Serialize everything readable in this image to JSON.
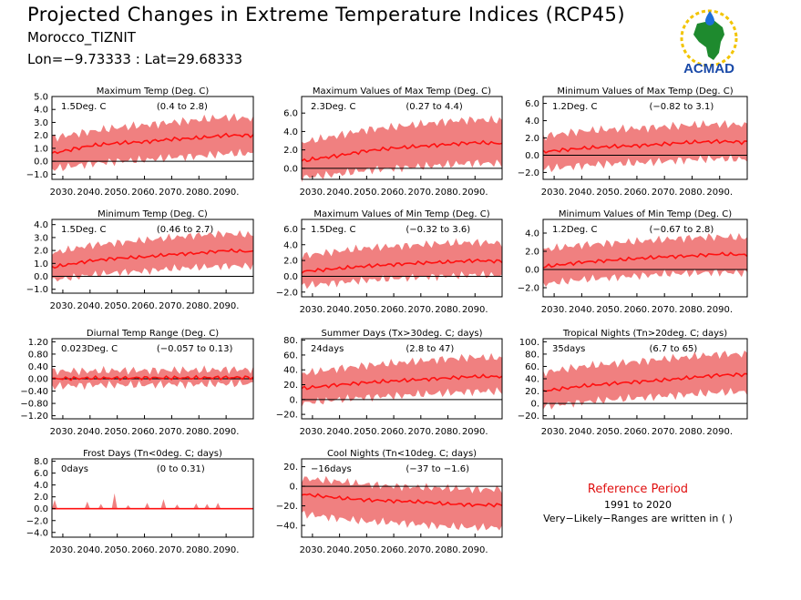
{
  "header": {
    "title": "Projected Changes in Extreme Temperature Indices (RCP45)",
    "location": "Morocco_TIZNIT",
    "coords": "Lon=−9.73333 : Lat=29.68333"
  },
  "logo": {
    "text": "ACMAD"
  },
  "reference": {
    "title": "Reference Period",
    "years": "1991 to 2020",
    "note": "Very−Likely−Ranges are written in ( )"
  },
  "colors": {
    "band": "#f08080",
    "line": "#ff1010",
    "zero": "#000000"
  },
  "chart_data": [
    {
      "type": "line",
      "title": "Maximum Temp (Deg. C)",
      "change": "1.5Deg. C",
      "range": "(0.4 to 2.8)",
      "x_ticks": [
        "2030.",
        "2040.",
        "2050.",
        "2060.",
        "2070.",
        "2080.",
        "2090."
      ],
      "y_ticks": [
        "−1.0",
        "0.0",
        "1.0",
        "2.0",
        "3.0",
        "4.0",
        "5.0"
      ],
      "ylim": [
        -1.4,
        5.0
      ],
      "series": [
        {
          "name": "median",
          "x": [
            2026,
            2040,
            2050,
            2060,
            2070,
            2080,
            2090,
            2100
          ],
          "y": [
            0.6,
            1.2,
            1.4,
            1.5,
            1.7,
            1.8,
            2.0,
            2.0
          ]
        }
      ],
      "band": {
        "lower": [
          -0.6,
          -0.2,
          0.0,
          0.1,
          0.3,
          0.4,
          0.6,
          0.6
        ],
        "upper": [
          1.8,
          2.3,
          2.6,
          2.8,
          3.0,
          3.2,
          3.4,
          3.3
        ]
      }
    },
    {
      "type": "line",
      "title": "Maximum Values of Max Temp (Deg. C)",
      "change": "2.3Deg. C",
      "range": "(0.27 to 4.4)",
      "x_ticks": [
        "2030.",
        "2040.",
        "2050.",
        "2060.",
        "2070.",
        "2080.",
        "2090."
      ],
      "y_ticks": [
        "0.0",
        "2.0",
        "4.0",
        "6.0"
      ],
      "ylim": [
        -1.2,
        7.8
      ],
      "series": [
        {
          "name": "median",
          "x": [
            2026,
            2040,
            2050,
            2060,
            2070,
            2080,
            2090,
            2100
          ],
          "y": [
            0.8,
            1.4,
            1.9,
            2.2,
            2.4,
            2.6,
            2.8,
            2.7
          ]
        }
      ],
      "band": {
        "lower": [
          -1.0,
          -0.6,
          -0.2,
          0.0,
          0.2,
          0.4,
          0.6,
          0.5
        ],
        "upper": [
          2.8,
          3.6,
          4.2,
          4.5,
          4.8,
          5.1,
          5.3,
          5.2
        ]
      }
    },
    {
      "type": "line",
      "title": "Minimum Values of Max Temp (Deg. C)",
      "change": "1.2Deg. C",
      "range": "(−0.82 to 3.1)",
      "x_ticks": [
        "2030.",
        "2040.",
        "2050.",
        "2060.",
        "2070.",
        "2080.",
        "2090."
      ],
      "y_ticks": [
        "−2.0",
        "0.0",
        "2.0",
        "4.0",
        "6.0"
      ],
      "ylim": [
        -2.8,
        6.8
      ],
      "series": [
        {
          "name": "median",
          "x": [
            2026,
            2040,
            2050,
            2060,
            2070,
            2080,
            2090,
            2100
          ],
          "y": [
            0.4,
            0.8,
            1.0,
            1.1,
            1.3,
            1.5,
            1.6,
            1.5
          ]
        }
      ],
      "band": {
        "lower": [
          -1.6,
          -1.2,
          -1.0,
          -0.9,
          -0.7,
          -0.5,
          -0.4,
          -0.5
        ],
        "upper": [
          2.2,
          2.8,
          3.0,
          3.1,
          3.3,
          3.5,
          3.6,
          3.5
        ]
      }
    },
    {
      "type": "line",
      "title": "Minimum Temp (Deg. C)",
      "change": "1.5Deg. C",
      "range": "(0.46 to 2.7)",
      "x_ticks": [
        "2030.",
        "2040.",
        "2050.",
        "2060.",
        "2070.",
        "2080.",
        "2090."
      ],
      "y_ticks": [
        "−1.0",
        "0.0",
        "1.0",
        "2.0",
        "3.0",
        "4.0"
      ],
      "ylim": [
        -1.3,
        4.4
      ],
      "series": [
        {
          "name": "median",
          "x": [
            2026,
            2040,
            2050,
            2060,
            2070,
            2080,
            2090,
            2100
          ],
          "y": [
            0.7,
            1.2,
            1.4,
            1.5,
            1.7,
            1.8,
            2.0,
            1.9
          ]
        }
      ],
      "band": {
        "lower": [
          -0.3,
          0.1,
          0.3,
          0.4,
          0.6,
          0.7,
          0.8,
          0.8
        ],
        "upper": [
          1.8,
          2.4,
          2.6,
          2.8,
          3.0,
          3.2,
          3.3,
          3.2
        ]
      }
    },
    {
      "type": "line",
      "title": "Maximum Values of Min Temp (Deg. C)",
      "change": "1.5Deg. C",
      "range": "(−0.32 to 3.6)",
      "x_ticks": [
        "2030.",
        "2040.",
        "2050.",
        "2060.",
        "2070.",
        "2080.",
        "2090."
      ],
      "y_ticks": [
        "−2.0",
        "0.0",
        "2.0",
        "4.0",
        "6.0"
      ],
      "ylim": [
        -2.6,
        7.2
      ],
      "series": [
        {
          "name": "median",
          "x": [
            2026,
            2040,
            2050,
            2060,
            2070,
            2080,
            2090,
            2100
          ],
          "y": [
            0.6,
            1.0,
            1.3,
            1.5,
            1.7,
            1.8,
            2.0,
            1.9
          ]
        }
      ],
      "band": {
        "lower": [
          -1.2,
          -0.8,
          -0.5,
          -0.3,
          -0.1,
          0.0,
          0.2,
          0.1
        ],
        "upper": [
          2.6,
          3.2,
          3.6,
          3.8,
          4.0,
          4.2,
          4.3,
          4.2
        ]
      }
    },
    {
      "type": "line",
      "title": "Minimum Values of Min Temp (Deg. C)",
      "change": "1.2Deg. C",
      "range": "(−0.67 to 2.8)",
      "x_ticks": [
        "2030.",
        "2040.",
        "2050.",
        "2060.",
        "2070.",
        "2080.",
        "2090."
      ],
      "y_ticks": [
        "−2.0",
        "0.0",
        "2.0",
        "4.0"
      ],
      "ylim": [
        -3.0,
        5.5
      ],
      "series": [
        {
          "name": "median",
          "x": [
            2026,
            2040,
            2050,
            2060,
            2070,
            2080,
            2090,
            2100
          ],
          "y": [
            0.3,
            0.8,
            1.0,
            1.2,
            1.4,
            1.5,
            1.7,
            1.6
          ]
        }
      ],
      "band": {
        "lower": [
          -1.6,
          -1.1,
          -0.9,
          -0.7,
          -0.5,
          -0.4,
          -0.3,
          -0.4
        ],
        "upper": [
          2.2,
          2.7,
          2.9,
          3.1,
          3.3,
          3.5,
          3.6,
          3.5
        ]
      }
    },
    {
      "type": "line",
      "title": "Diurnal Temp Range (Deg. C)",
      "change": "0.023Deg. C",
      "range": "(−0.057 to 0.13)",
      "x_ticks": [
        "2030.",
        "2040.",
        "2050.",
        "2060.",
        "2070.",
        "2080.",
        "2090."
      ],
      "y_ticks": [
        "−1.20",
        "−0.80",
        "−0.40",
        "0.00",
        "0.40",
        "0.80",
        "1.20"
      ],
      "ylim": [
        -1.3,
        1.3
      ],
      "series": [
        {
          "name": "median",
          "x": [
            2026,
            2040,
            2050,
            2060,
            2070,
            2080,
            2090,
            2100
          ],
          "y": [
            0.0,
            0.02,
            0.02,
            0.03,
            0.03,
            0.03,
            0.04,
            0.04
          ]
        }
      ],
      "band": {
        "lower": [
          -0.25,
          -0.2,
          -0.2,
          -0.2,
          -0.18,
          -0.18,
          -0.16,
          -0.16
        ],
        "upper": [
          0.25,
          0.25,
          0.27,
          0.27,
          0.28,
          0.28,
          0.3,
          0.3
        ]
      }
    },
    {
      "type": "line",
      "title": "Summer Days (Tx>30deg. C; days)",
      "change": "24days",
      "range": "(2.8 to 47)",
      "x_ticks": [
        "2030.",
        "2040.",
        "2050.",
        "2060.",
        "2070.",
        "2080.",
        "2090."
      ],
      "y_ticks": [
        "−20.",
        "0.",
        "20.",
        "40.",
        "60.",
        "80."
      ],
      "ylim": [
        -26,
        82
      ],
      "series": [
        {
          "name": "median",
          "x": [
            2026,
            2040,
            2050,
            2060,
            2070,
            2080,
            2090,
            2100
          ],
          "y": [
            15,
            20,
            23,
            25,
            27,
            29,
            31,
            31
          ]
        }
      ],
      "band": {
        "lower": [
          -5,
          0,
          3,
          5,
          7,
          9,
          11,
          11
        ],
        "upper": [
          35,
          42,
          46,
          49,
          52,
          55,
          57,
          56
        ]
      }
    },
    {
      "type": "line",
      "title": "Tropical Nights (Tn>20deg. C; days)",
      "change": "35days",
      "range": "(6.7 to 65)",
      "x_ticks": [
        "2030.",
        "2040.",
        "2050.",
        "2060.",
        "2070.",
        "2080.",
        "2090."
      ],
      "y_ticks": [
        "−20.",
        "0.",
        "20.",
        "40.",
        "60.",
        "80.",
        "100."
      ],
      "ylim": [
        -25,
        105
      ],
      "series": [
        {
          "name": "median",
          "x": [
            2026,
            2040,
            2050,
            2060,
            2070,
            2080,
            2090,
            2100
          ],
          "y": [
            20,
            28,
            32,
            35,
            38,
            42,
            46,
            47
          ]
        }
      ],
      "band": {
        "lower": [
          -5,
          2,
          6,
          9,
          12,
          15,
          18,
          19
        ],
        "upper": [
          50,
          60,
          64,
          68,
          72,
          76,
          80,
          80
        ]
      }
    },
    {
      "type": "line",
      "title": "Frost Days (Tn<0deg. C; days)",
      "change": "0days",
      "range": "(0 to 0.31)",
      "x_ticks": [
        "2030.",
        "2040.",
        "2050.",
        "2060.",
        "2070.",
        "2080.",
        "2090."
      ],
      "y_ticks": [
        "−4.0",
        "−2.0",
        "0.0",
        "2.0",
        "4.0",
        "6.0",
        "8.0"
      ],
      "ylim": [
        -4.8,
        8.4
      ],
      "series": [
        {
          "name": "median",
          "x": [
            2026,
            2040,
            2050,
            2060,
            2070,
            2080,
            2090,
            2100
          ],
          "y": [
            0,
            0,
            0,
            0,
            0,
            0,
            0,
            0
          ]
        }
      ],
      "spikes": [
        {
          "x": 2027,
          "h": 1.5
        },
        {
          "x": 2039,
          "h": 1.2
        },
        {
          "x": 2044,
          "h": 0.8
        },
        {
          "x": 2049,
          "h": 2.6
        },
        {
          "x": 2054,
          "h": 0.6
        },
        {
          "x": 2061,
          "h": 1.0
        },
        {
          "x": 2067,
          "h": 1.6
        },
        {
          "x": 2072,
          "h": 0.7
        },
        {
          "x": 2079,
          "h": 0.9
        },
        {
          "x": 2083,
          "h": 0.8
        },
        {
          "x": 2087,
          "h": 1.0
        }
      ]
    },
    {
      "type": "line",
      "title": "Cool Nights (Tn<10deg. C; days)",
      "change": "−16days",
      "range": "(−37 to −1.6)",
      "x_ticks": [
        "2030.",
        "2040.",
        "2050.",
        "2060.",
        "2070.",
        "2080.",
        "2090."
      ],
      "y_ticks": [
        "−40.",
        "−20.",
        "0.",
        "20."
      ],
      "ylim": [
        -52,
        28
      ],
      "series": [
        {
          "name": "median",
          "x": [
            2026,
            2040,
            2050,
            2060,
            2070,
            2080,
            2090,
            2100
          ],
          "y": [
            -8,
            -12,
            -14,
            -15,
            -16,
            -18,
            -19,
            -19
          ]
        }
      ],
      "band": {
        "lower": [
          -28,
          -33,
          -36,
          -37,
          -39,
          -41,
          -42,
          -42
        ],
        "upper": [
          8,
          5,
          2,
          0,
          -1,
          -2,
          -3,
          -3
        ]
      }
    }
  ]
}
